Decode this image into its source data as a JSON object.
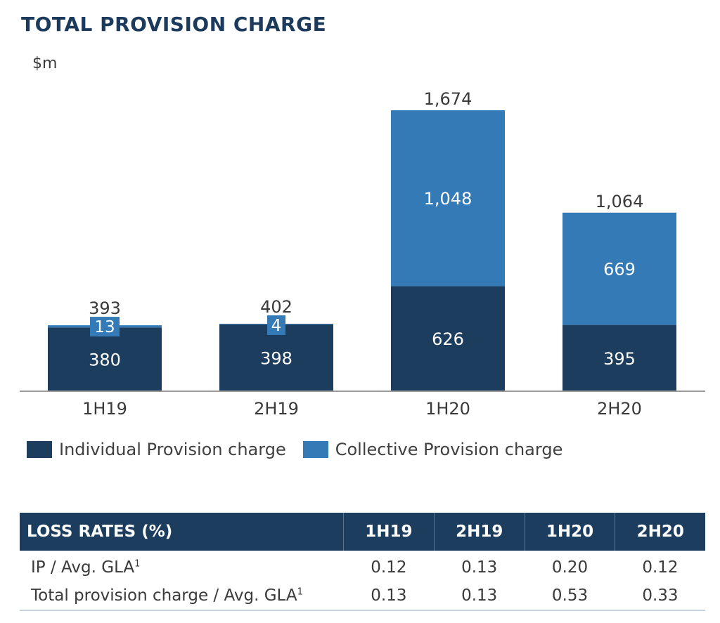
{
  "title": "TOTAL PROVISION CHARGE",
  "unit": "$m",
  "colors": {
    "individual": "#1c3d5e",
    "collective": "#337ab7"
  },
  "chart_data": {
    "type": "bar",
    "stacked": true,
    "categories": [
      "1H19",
      "2H19",
      "1H20",
      "2H20"
    ],
    "series": [
      {
        "name": "Individual Provision charge",
        "values": [
          380,
          398,
          626,
          395
        ],
        "labels": [
          "380",
          "398",
          "626",
          "395"
        ]
      },
      {
        "name": "Collective Provision charge",
        "values": [
          13,
          4,
          1048,
          669
        ],
        "labels": [
          "13",
          "4",
          "1,048",
          "669"
        ]
      }
    ],
    "totals": [
      393,
      402,
      1674,
      1064
    ],
    "total_labels": [
      "393",
      "402",
      "1,674",
      "1,064"
    ],
    "ylim": [
      0,
      1700
    ],
    "legend": "bottom-left"
  },
  "table": {
    "header": [
      "LOSS RATES (%)",
      "1H19",
      "2H19",
      "1H20",
      "2H20"
    ],
    "rows": [
      {
        "label": "IP / Avg. GLA",
        "sup": "1",
        "values": [
          "0.12",
          "0.13",
          "0.20",
          "0.12"
        ]
      },
      {
        "label": "Total provision charge / Avg. GLA",
        "sup": "1",
        "values": [
          "0.13",
          "0.13",
          "0.53",
          "0.33"
        ]
      }
    ]
  }
}
